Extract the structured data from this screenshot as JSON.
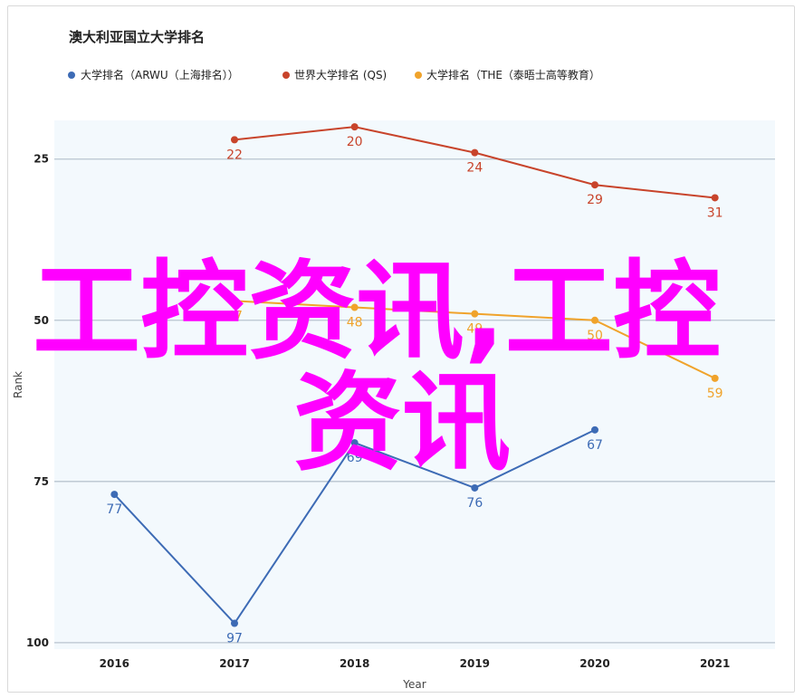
{
  "chart_data": {
    "type": "line",
    "title": "澳大利亚国立大学排名",
    "xlabel": "Year",
    "ylabel": "Rank",
    "x": [
      2016,
      2017,
      2018,
      2019,
      2020,
      2021
    ],
    "x_tick_labels": [
      "2016",
      "2017",
      "2018",
      "2019",
      "2020",
      "2021"
    ],
    "y_ticks": [
      25,
      50,
      75,
      100
    ],
    "y_tick_labels": [
      "25",
      "50",
      "75",
      "100"
    ],
    "ylim": [
      19,
      101
    ],
    "y_reversed": true,
    "grid": true,
    "legend_position": "top",
    "series": [
      {
        "name": "大学排名（ARWU（上海排名））",
        "color": "#3d6bb5",
        "values": [
          77,
          97,
          69,
          76,
          67,
          null
        ]
      },
      {
        "name": "世界大学排名 (QS)",
        "color": "#c8442b",
        "values": [
          null,
          22,
          20,
          24,
          29,
          31
        ]
      },
      {
        "name": "大学排名（THE（泰晤士高等教育）",
        "color": "#f0a32b",
        "values": [
          null,
          47,
          48,
          49,
          50,
          59
        ]
      }
    ]
  },
  "watermark": {
    "line1": "工控资讯,工控",
    "line2": "资讯",
    "color": "#ff00ff"
  }
}
